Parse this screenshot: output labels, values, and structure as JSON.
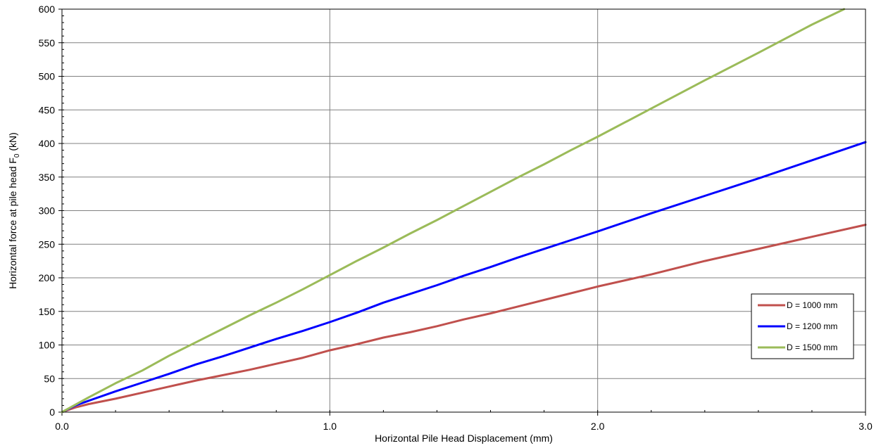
{
  "chart_data": {
    "type": "line",
    "xlabel": "Horizontal Pile Head Displacement (mm)",
    "ylabel": "Horizontal force at pile head F",
    "ylabel_subscript": "0",
    "ylabel_suffix": " (kN)",
    "xlim": [
      0,
      3.0
    ],
    "ylim": [
      0,
      600
    ],
    "x_ticks": [
      0,
      1.0,
      2.0,
      3.0
    ],
    "x_tick_labels": [
      "0.0",
      "1.0",
      "2.0",
      "3.0"
    ],
    "y_ticks": [
      0,
      50,
      100,
      150,
      200,
      250,
      300,
      350,
      400,
      450,
      500,
      550,
      600
    ],
    "y_tick_labels": [
      "0",
      "50",
      "100",
      "150",
      "200",
      "250",
      "300",
      "350",
      "400",
      "450",
      "500",
      "550",
      "600"
    ],
    "grid": true,
    "legend_position": "right",
    "series": [
      {
        "name": "D = 1000 mm",
        "color": "#c0504d",
        "x": [
          0,
          0.05,
          0.1,
          0.2,
          0.3,
          0.4,
          0.5,
          0.6,
          0.7,
          0.8,
          0.9,
          1.0,
          1.1,
          1.2,
          1.3,
          1.4,
          1.5,
          1.6,
          1.7,
          1.8,
          1.9,
          2.0,
          2.2,
          2.4,
          2.6,
          2.8,
          3.0
        ],
        "y": [
          0,
          7,
          12,
          20,
          29,
          38,
          47,
          55,
          63,
          72,
          81,
          92,
          101,
          111,
          119,
          128,
          138,
          147,
          157,
          167,
          177,
          187,
          205,
          225,
          243,
          261,
          279
        ]
      },
      {
        "name": "D = 1200 mm",
        "color": "#0000ff",
        "x": [
          0,
          0.05,
          0.1,
          0.2,
          0.3,
          0.4,
          0.5,
          0.6,
          0.7,
          0.8,
          0.9,
          1.0,
          1.1,
          1.2,
          1.3,
          1.4,
          1.5,
          1.6,
          1.7,
          1.8,
          1.9,
          2.0,
          2.2,
          2.4,
          2.6,
          2.8,
          3.0
        ],
        "y": [
          0,
          10,
          17,
          31,
          44,
          57,
          71,
          83,
          96,
          109,
          121,
          134,
          148,
          163,
          176,
          189,
          203,
          216,
          230,
          243,
          256,
          269,
          296,
          322,
          348,
          375,
          402
        ]
      },
      {
        "name": "D = 1500 mm",
        "color": "#9bbb59",
        "x": [
          0,
          0.05,
          0.1,
          0.2,
          0.3,
          0.4,
          0.5,
          0.6,
          0.7,
          0.8,
          0.9,
          1.0,
          1.1,
          1.2,
          1.3,
          1.4,
          1.5,
          1.6,
          1.7,
          1.8,
          1.9,
          2.0,
          2.2,
          2.4,
          2.6,
          2.8,
          2.92
        ],
        "y": [
          0,
          11,
          22,
          43,
          62,
          84,
          104,
          124,
          144,
          163,
          183,
          204,
          225,
          245,
          266,
          286,
          307,
          328,
          349,
          369,
          390,
          410,
          452,
          494,
          535,
          577,
          600
        ]
      }
    ]
  }
}
